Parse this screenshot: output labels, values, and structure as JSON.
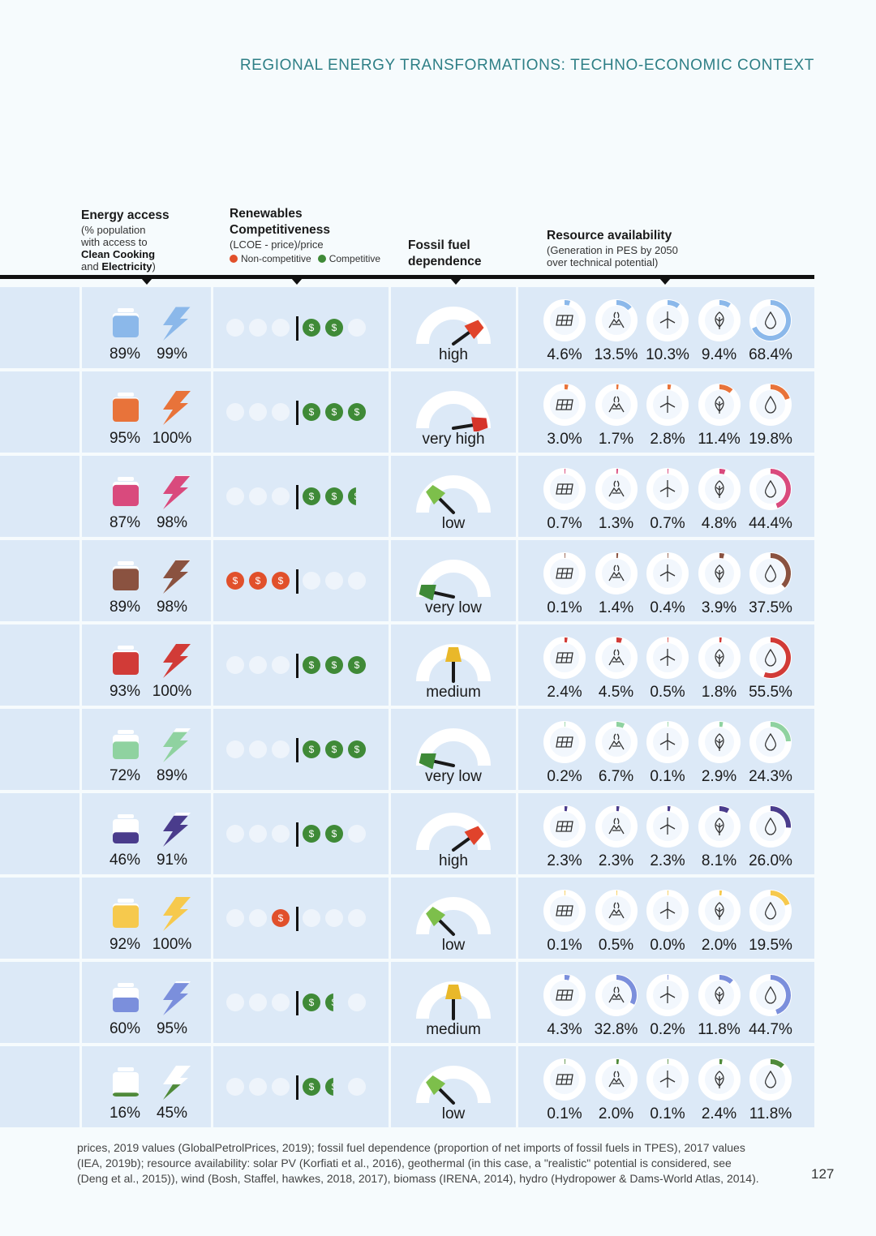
{
  "running_head": "REGIONAL ENERGY TRANSFORMATIONS: TECHNO-ECONOMIC CONTEXT",
  "headers": {
    "energy_access": {
      "title": "Energy access",
      "line1": "(% population",
      "line2": "with access to",
      "bold1": "Clean Cooking",
      "and_text": "and ",
      "bold2": "Electricity",
      "close": ")"
    },
    "renewables": {
      "title1": "Renewables",
      "title2": "Competitiveness",
      "sub": "(LCOE - price)/price",
      "legend_non": "Non-competitive",
      "legend_comp": "Competitive"
    },
    "fossil": {
      "title1": "Fossil fuel",
      "title2": "dependence"
    },
    "resource": {
      "title": "Resource availability",
      "sub1": "(Generation in PES by 2050",
      "sub2": "over technical potential)"
    }
  },
  "colors": {
    "non_competitive": "#e1502b",
    "competitive": "#3f8a37",
    "row_bg": "#dce9f7",
    "gauge_track": "#eef4fb",
    "accent_head": "#2e7f86"
  },
  "resource_icons": [
    "solar-panel-icon",
    "geothermal-icon",
    "wind-turbine-icon",
    "biomass-leaf-icon",
    "hydro-drop-icon"
  ],
  "rows": [
    {
      "color": "#8bb8ea",
      "cooking": "89%",
      "cooking_value": 89,
      "electricity": "99%",
      "electricity_value": 99,
      "non_competitive": 0,
      "competitive": 2,
      "fossil_label": "high",
      "fossil_level": 0.8,
      "fossil_color": "#e0432b",
      "resources": [
        "4.6%",
        "13.5%",
        "10.3%",
        "9.4%",
        "68.4%"
      ],
      "resource_values": [
        4.6,
        13.5,
        10.3,
        9.4,
        68.4
      ]
    },
    {
      "color": "#e8733a",
      "cooking": "95%",
      "cooking_value": 95,
      "electricity": "100%",
      "electricity_value": 100,
      "non_competitive": 0,
      "competitive": 3,
      "fossil_label": "very high",
      "fossil_level": 0.95,
      "fossil_color": "#d6342a",
      "resources": [
        "3.0%",
        "1.7%",
        "2.8%",
        "11.4%",
        "19.8%"
      ],
      "resource_values": [
        3.0,
        1.7,
        2.8,
        11.4,
        19.8
      ]
    },
    {
      "color": "#d94a7d",
      "cooking": "87%",
      "cooking_value": 87,
      "electricity": "98%",
      "electricity_value": 98,
      "non_competitive": 0,
      "competitive": 2.5,
      "fossil_label": "low",
      "fossil_level": 0.25,
      "fossil_color": "#7dbf4b",
      "resources": [
        "0.7%",
        "1.3%",
        "0.7%",
        "4.8%",
        "44.4%"
      ],
      "resource_values": [
        0.7,
        1.3,
        0.7,
        4.8,
        44.4
      ]
    },
    {
      "color": "#8a5240",
      "cooking": "89%",
      "cooking_value": 89,
      "electricity": "98%",
      "electricity_value": 98,
      "non_competitive": 3,
      "competitive": 0,
      "fossil_label": "very low",
      "fossil_level": 0.07,
      "fossil_color": "#3f8a37",
      "resources": [
        "0.1%",
        "1.4%",
        "0.4%",
        "3.9%",
        "37.5%"
      ],
      "resource_values": [
        0.1,
        1.4,
        0.4,
        3.9,
        37.5
      ]
    },
    {
      "color": "#d13b37",
      "cooking": "93%",
      "cooking_value": 93,
      "electricity": "100%",
      "electricity_value": 100,
      "non_competitive": 0,
      "competitive": 3,
      "fossil_label": "medium",
      "fossil_level": 0.5,
      "fossil_color": "#e9b82a",
      "resources": [
        "2.4%",
        "4.5%",
        "0.5%",
        "1.8%",
        "55.5%"
      ],
      "resource_values": [
        2.4,
        4.5,
        0.5,
        1.8,
        55.5
      ]
    },
    {
      "color": "#8fd2a0",
      "cooking": "72%",
      "cooking_value": 72,
      "electricity": "89%",
      "electricity_value": 89,
      "non_competitive": 0,
      "competitive": 3,
      "fossil_label": "very low",
      "fossil_level": 0.07,
      "fossil_color": "#3f8a37",
      "resources": [
        "0.2%",
        "6.7%",
        "0.1%",
        "2.9%",
        "24.3%"
      ],
      "resource_values": [
        0.2,
        6.7,
        0.1,
        2.9,
        24.3
      ]
    },
    {
      "color": "#4a3c8c",
      "cooking": "46%",
      "cooking_value": 46,
      "electricity": "91%",
      "electricity_value": 91,
      "non_competitive": 0,
      "competitive": 2,
      "fossil_label": "high",
      "fossil_level": 0.8,
      "fossil_color": "#e0432b",
      "resources": [
        "2.3%",
        "2.3%",
        "2.3%",
        "8.1%",
        "26.0%"
      ],
      "resource_values": [
        2.3,
        2.3,
        2.3,
        8.1,
        26.0
      ]
    },
    {
      "color": "#f6c94d",
      "cooking": "92%",
      "cooking_value": 92,
      "electricity": "100%",
      "electricity_value": 100,
      "non_competitive": 1,
      "competitive": 0,
      "fossil_label": "low",
      "fossil_level": 0.25,
      "fossil_color": "#7dbf4b",
      "resources": [
        "0.1%",
        "0.5%",
        "0.0%",
        "2.0%",
        "19.5%"
      ],
      "resource_values": [
        0.1,
        0.5,
        0.0,
        2.0,
        19.5
      ]
    },
    {
      "color": "#7b8fdc",
      "cooking": "60%",
      "cooking_value": 60,
      "electricity": "95%",
      "electricity_value": 95,
      "non_competitive": 0,
      "competitive": 1.5,
      "fossil_label": "medium",
      "fossil_level": 0.5,
      "fossil_color": "#e9b82a",
      "resources": [
        "4.3%",
        "32.8%",
        "0.2%",
        "11.8%",
        "44.7%"
      ],
      "resource_values": [
        4.3,
        32.8,
        0.2,
        11.8,
        44.7
      ]
    },
    {
      "color": "#4f8a3a",
      "cooking": "16%",
      "cooking_value": 16,
      "electricity": "45%",
      "electricity_value": 45,
      "non_competitive": 0,
      "competitive": 1.5,
      "fossil_label": "low",
      "fossil_level": 0.25,
      "fossil_color": "#7dbf4b",
      "resources": [
        "0.1%",
        "2.0%",
        "0.1%",
        "2.4%",
        "11.8%"
      ],
      "resource_values": [
        0.1,
        2.0,
        0.1,
        2.4,
        11.8
      ]
    }
  ],
  "footnote": "prices, 2019 values (GlobalPetrolPrices, 2019); fossil fuel dependence (proportion of net imports of fossil fuels in TPES), 2017 values (IEA, 2019b); resource availability: solar PV (Korfiati et al., 2016), geothermal (in this case, a \"realistic\" potential is considered, see (Deng et al., 2015)), wind (Bosh, Staffel, hawkes, 2018, 2017), biomass (IRENA, 2014), hydro (Hydropower & Dams-World Atlas, 2014).",
  "page_number": "127"
}
